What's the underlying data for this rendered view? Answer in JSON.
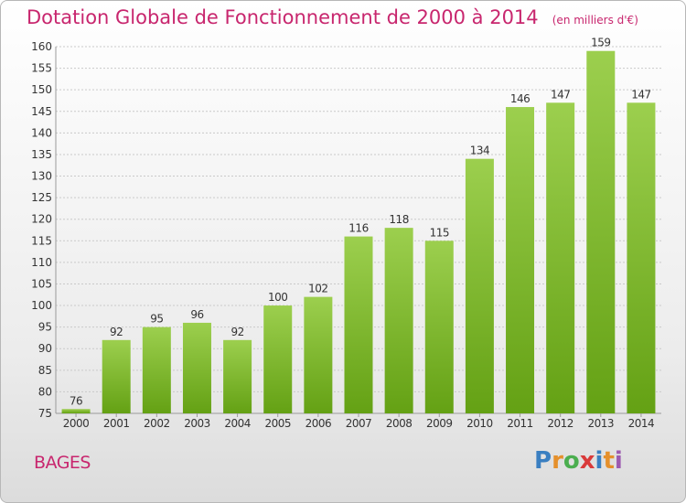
{
  "header": {
    "title": "Dotation Globale de Fonctionnement de 2000 à 2014",
    "unit": "(en milliers d'€)"
  },
  "footer": {
    "commune": "BAGES",
    "brand_letters": [
      "P",
      "r",
      "o",
      "x",
      "i",
      "t",
      "i"
    ],
    "brand_colors": [
      "#3a7fc1",
      "#e5902c",
      "#4bae4f",
      "#d93a3a",
      "#3a7fc1",
      "#e5902c",
      "#9c5ab0"
    ]
  },
  "colors": {
    "title": "#c8266e",
    "bar_light": "#9ccf4e",
    "bar_dark": "#64a114",
    "grid": "#c9c9c9"
  },
  "chart_data": {
    "type": "bar",
    "title": "Dotation Globale de Fonctionnement de 2000 à 2014",
    "subtitle": "(en milliers d'€)",
    "categories": [
      "2000",
      "2001",
      "2002",
      "2003",
      "2004",
      "2005",
      "2006",
      "2007",
      "2008",
      "2009",
      "2010",
      "2011",
      "2012",
      "2013",
      "2014"
    ],
    "values": [
      76,
      92,
      95,
      96,
      92,
      100,
      102,
      116,
      118,
      115,
      134,
      146,
      147,
      159,
      147
    ],
    "ylim": [
      75,
      160
    ],
    "yticks": [
      75,
      80,
      85,
      90,
      95,
      100,
      105,
      110,
      115,
      120,
      125,
      130,
      135,
      140,
      145,
      150,
      155,
      160
    ],
    "grid": true,
    "legend": "none"
  }
}
